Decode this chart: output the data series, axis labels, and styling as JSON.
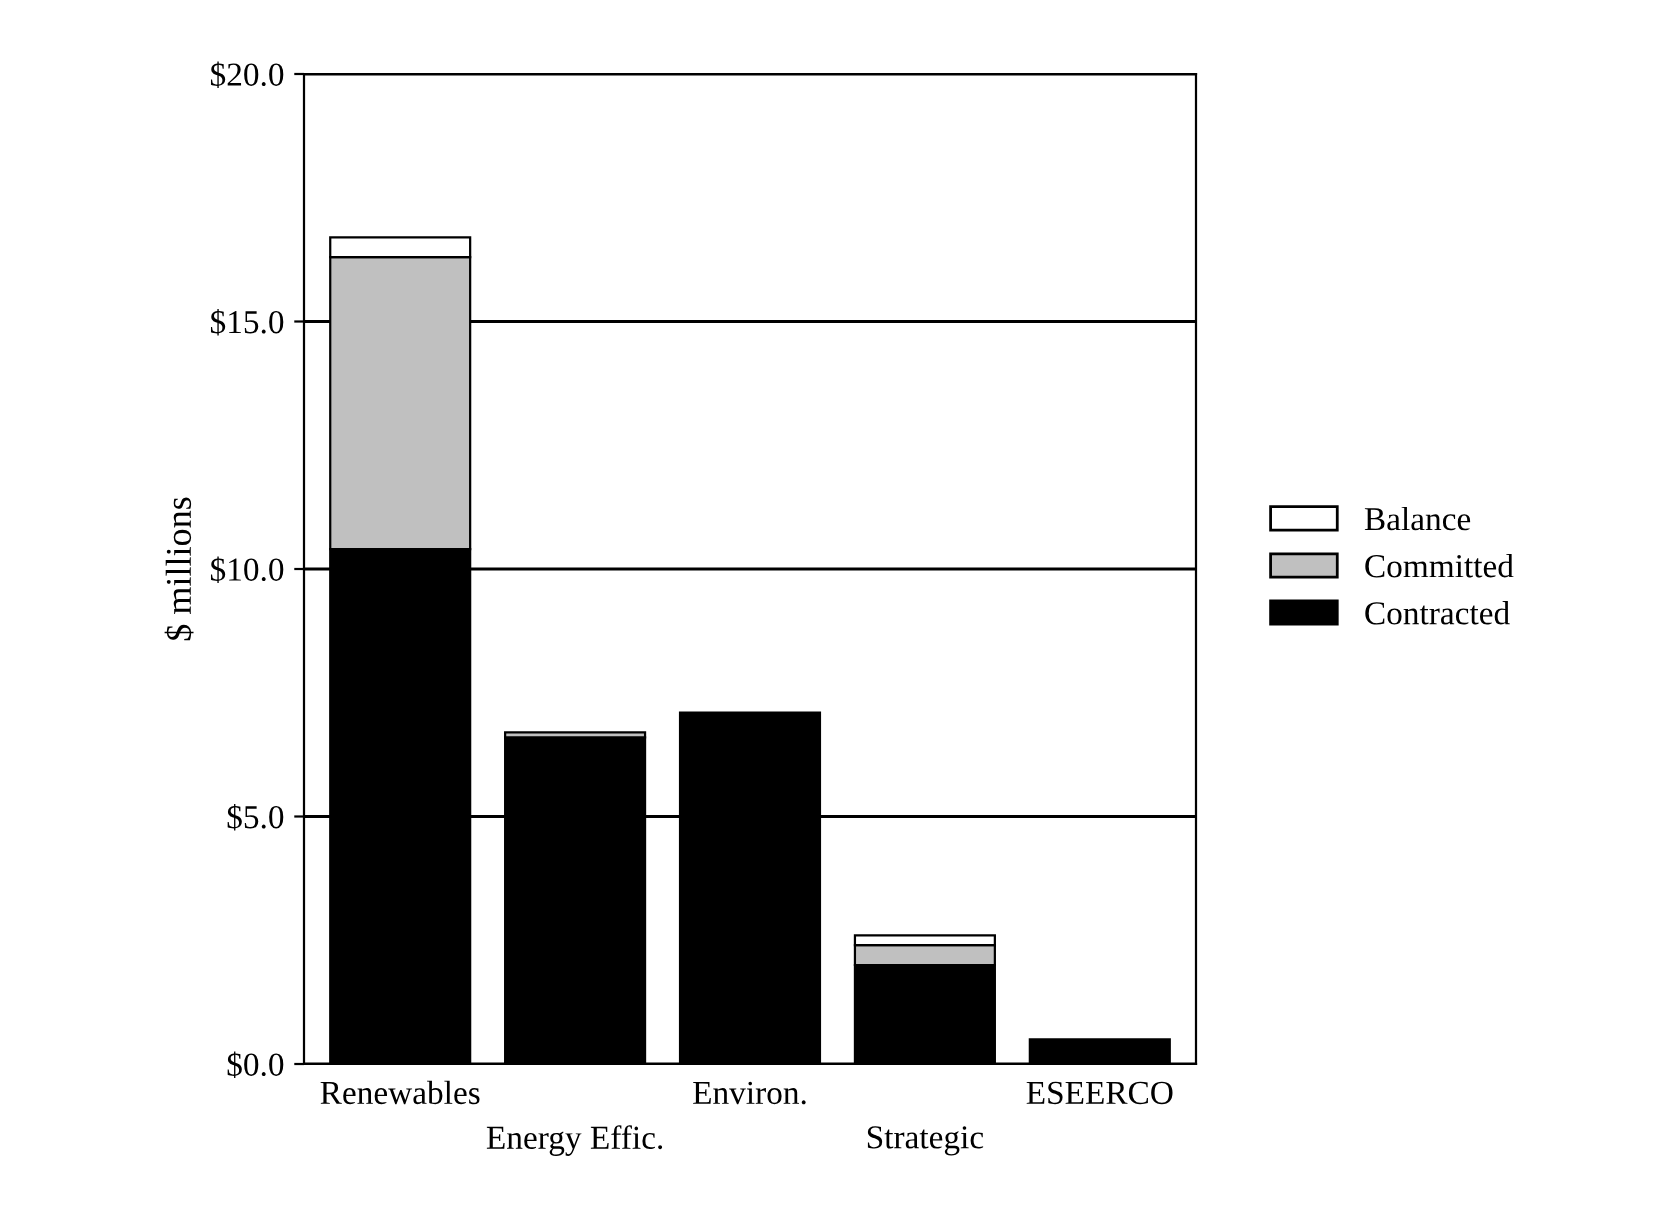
{
  "chart_data": {
    "type": "bar",
    "stacked": true,
    "ylabel": "$ millions",
    "categories": [
      "Renewables",
      "Energy Effic.",
      "Environ.",
      "Strategic",
      "ESEERCO"
    ],
    "series": [
      {
        "name": "Contracted",
        "color": "#000000",
        "values": [
          10.4,
          6.6,
          7.1,
          2.0,
          0.5
        ]
      },
      {
        "name": "Committed",
        "color": "#c0c0c0",
        "values": [
          5.9,
          0.1,
          null,
          0.4,
          null
        ]
      },
      {
        "name": "Balance",
        "color": "#ffffff",
        "values": [
          0.4,
          null,
          null,
          0.2,
          null
        ]
      }
    ],
    "ylim": [
      0,
      20
    ],
    "yticks": [
      {
        "value": 0,
        "label": "$0.0"
      },
      {
        "value": 5,
        "label": "$5.0"
      },
      {
        "value": 10,
        "label": "$10.0"
      },
      {
        "value": 15,
        "label": "$15.0"
      },
      {
        "value": 20,
        "label": "$20.0"
      }
    ],
    "grid": "y",
    "legend": "right"
  }
}
